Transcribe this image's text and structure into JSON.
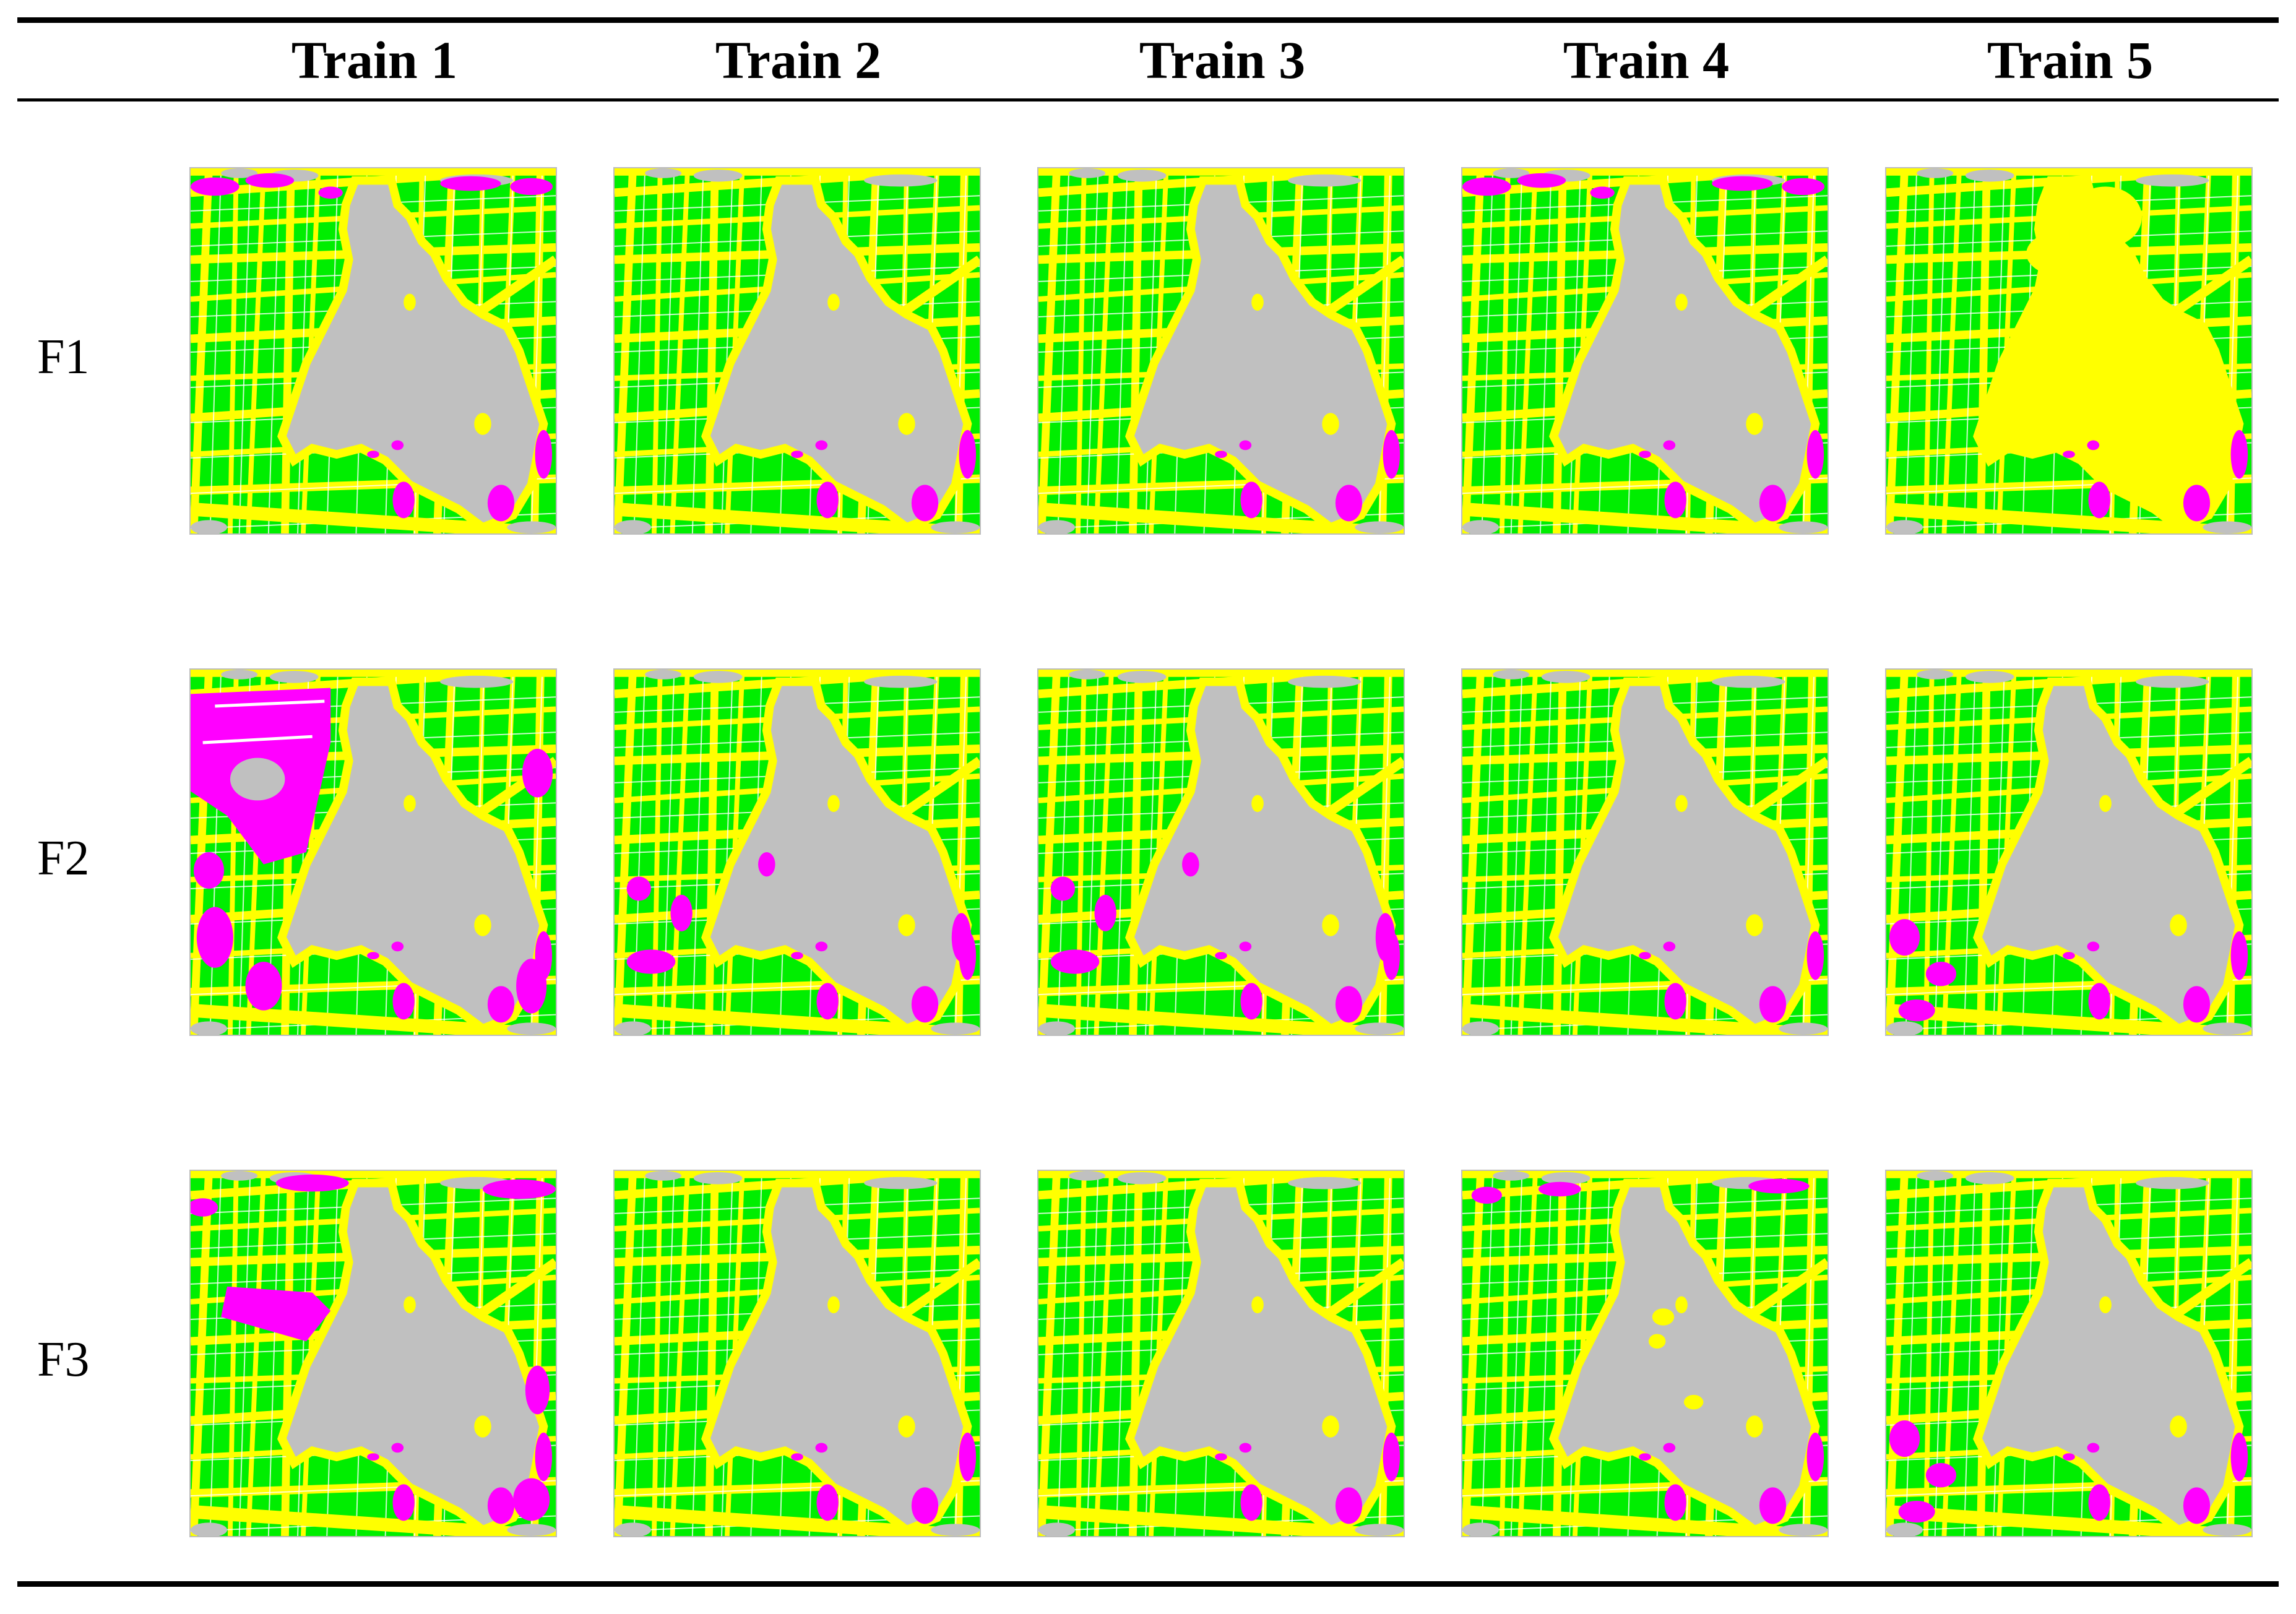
{
  "columns": [
    "Train 1",
    "Train 2",
    "Train 3",
    "Train 4",
    "Train 5"
  ],
  "rows": [
    "F1",
    "F2",
    "F3"
  ],
  "legend_colors": {
    "farmland": "#00ee00",
    "road": "#ffff00",
    "water": "#c0c0c0",
    "misclassified": "#ff00ff"
  },
  "variants": [
    [
      "base-magenta-top",
      "base",
      "base",
      "base-magenta-top",
      "lake-yellow"
    ],
    [
      "heavy-magenta-left",
      "base-magenta-left",
      "base-magenta-left",
      "base",
      "base-magenta-bottom"
    ],
    [
      "magenta-patch-left",
      "base",
      "base",
      "base-holes",
      "base-magenta-bottom"
    ]
  ]
}
